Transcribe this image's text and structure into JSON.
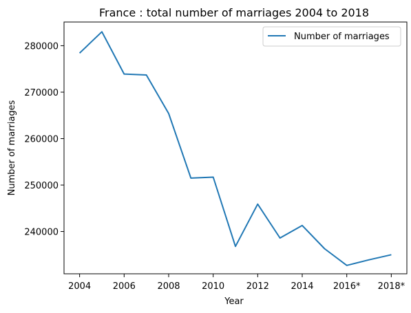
{
  "chart_data": {
    "type": "line",
    "title": "France : total number of marriages 2004 to 2018",
    "xlabel": "Year",
    "ylabel": "Number of marriages",
    "x": [
      2004,
      2005,
      2006,
      2007,
      2008,
      2009,
      2010,
      2011,
      2012,
      2013,
      2014,
      2015,
      2016,
      2017,
      2018
    ],
    "x_ticks": [
      {
        "value": 2004,
        "label": "2004"
      },
      {
        "value": 2006,
        "label": "2006"
      },
      {
        "value": 2008,
        "label": "2008"
      },
      {
        "value": 2010,
        "label": "2010"
      },
      {
        "value": 2012,
        "label": "2012"
      },
      {
        "value": 2014,
        "label": "2014"
      },
      {
        "value": 2016,
        "label": "2016*"
      },
      {
        "value": 2018,
        "label": "2018*"
      }
    ],
    "y_ticks": [
      240000,
      250000,
      260000,
      270000,
      280000
    ],
    "xlim": [
      2003.3,
      2018.7
    ],
    "ylim": [
      230900,
      285100
    ],
    "grid": false,
    "legend_position": "top-right",
    "series": [
      {
        "name": "Number of marriages",
        "color": "#1f77b4",
        "values": [
          278400,
          283000,
          273900,
          273700,
          265400,
          251500,
          251700,
          236800,
          245900,
          238600,
          241300,
          236300,
          232700,
          233900,
          235000
        ]
      }
    ]
  }
}
